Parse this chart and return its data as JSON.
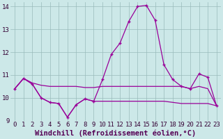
{
  "xlabel": "Windchill (Refroidissement éolien,°C)",
  "x": [
    0,
    1,
    2,
    3,
    4,
    5,
    6,
    7,
    8,
    9,
    10,
    11,
    12,
    13,
    14,
    15,
    16,
    17,
    18,
    19,
    20,
    21,
    22,
    23
  ],
  "line1": [
    10.4,
    10.85,
    10.6,
    10.0,
    9.8,
    9.75,
    9.15,
    9.7,
    9.95,
    9.85,
    10.8,
    11.9,
    12.4,
    13.35,
    14.0,
    14.05,
    13.4,
    11.45,
    10.8,
    10.5,
    10.4,
    11.05,
    10.9,
    9.65
  ],
  "line2": [
    10.4,
    10.85,
    10.65,
    10.55,
    10.5,
    10.5,
    10.5,
    10.5,
    10.45,
    10.45,
    10.5,
    10.5,
    10.5,
    10.5,
    10.5,
    10.5,
    10.5,
    10.5,
    10.5,
    10.5,
    10.4,
    10.5,
    10.4,
    9.65
  ],
  "line3": [
    10.4,
    10.85,
    10.6,
    10.0,
    9.8,
    9.75,
    9.15,
    9.7,
    9.95,
    9.85,
    9.85,
    9.85,
    9.85,
    9.85,
    9.85,
    9.85,
    9.85,
    9.85,
    9.8,
    9.75,
    9.75,
    9.75,
    9.75,
    9.65
  ],
  "line_color": "#990099",
  "bg_color": "#cce8e8",
  "grid_color": "#99bbbb",
  "ylim": [
    9.0,
    14.2
  ],
  "yticks": [
    9,
    10,
    11,
    12,
    13,
    14
  ],
  "xticks": [
    0,
    1,
    2,
    3,
    4,
    5,
    6,
    7,
    8,
    9,
    10,
    11,
    12,
    13,
    14,
    15,
    16,
    17,
    18,
    19,
    20,
    21,
    22,
    23
  ],
  "tick_fontsize": 6.5,
  "label_fontsize": 7.5
}
